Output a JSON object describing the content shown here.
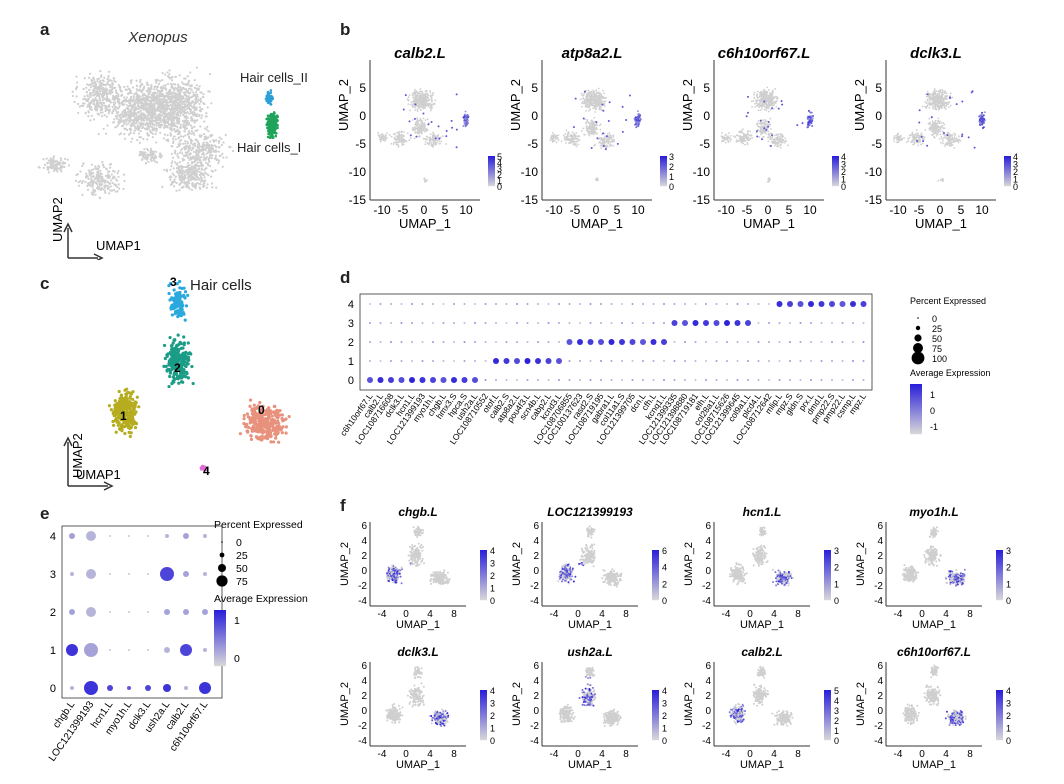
{
  "panels": {
    "a": {
      "letter": "a",
      "title": "Xenopus",
      "label_hair_ii": "Hair cells_II",
      "label_hair_i": "Hair cells_I",
      "axis_x": "UMAP1",
      "axis_y": "UMAP2"
    },
    "b": {
      "letter": "b",
      "axis_x": "UMAP_1",
      "axis_y": "UMAP_2",
      "x_ticks": [
        "-10",
        "-5",
        "0",
        "5",
        "10"
      ],
      "y_ticks": [
        "5",
        "0",
        "-5",
        "-10",
        "-15"
      ],
      "plots": [
        {
          "gene": "calb2.L",
          "cbar": [
            "5",
            "4",
            "3",
            "2",
            "1",
            "0"
          ]
        },
        {
          "gene": "atp8a2.L",
          "cbar": [
            "3",
            "2",
            "1",
            "0"
          ]
        },
        {
          "gene": "c6h10orf67.L",
          "cbar": [
            "4",
            "3",
            "2",
            "1",
            "0"
          ]
        },
        {
          "gene": "dclk3.L",
          "cbar": [
            "4",
            "3",
            "2",
            "1",
            "0"
          ]
        }
      ]
    },
    "c": {
      "letter": "c",
      "title": "Hair cells",
      "axis_x": "UMAP1",
      "axis_y": "UMAP2",
      "clusters": [
        "0",
        "1",
        "2",
        "3",
        "4"
      ]
    },
    "d": {
      "letter": "d",
      "y_labels": [
        "4",
        "3",
        "2",
        "1",
        "0"
      ],
      "genes": [
        "c6h10orf67.L",
        "calb2.L",
        "LOC108716608",
        "dclk3.L",
        "hcn1.L",
        "LOC121399193",
        "myo1h.L",
        "chgb.L",
        "hmx3.S",
        "hpca.S",
        "ush2a.L",
        "LOC108710552",
        "otof.L",
        "calb2.S",
        "atp8a2.L",
        "pou4f3.L",
        "scn4b.L",
        "cabp2.L",
        "kcnd3.L",
        "LOC108706855",
        "LOC100137623",
        "rasd2.S",
        "LOC108719195",
        "gabra1.L",
        "col11a1.S",
        "LOC121399705",
        "dcn.L",
        "cfh.L",
        "kcnq1.L",
        "LOC121399335",
        "LOC121398880",
        "LOC108719181",
        "elh.L",
        "col28a1.L",
        "LOC108715626",
        "LOC121399645",
        "col9a1.L",
        "plcd4.L",
        "LOC108712642",
        "mlip.L",
        "mpz.S",
        "gldn.S",
        "prx.L",
        "dmd.L",
        "pmp22.S",
        "pmp22.L",
        "csmp.L",
        "mpz.L"
      ],
      "legend_pct_title": "Percent Expressed",
      "legend_pct": [
        "0",
        "25",
        "50",
        "75",
        "100"
      ],
      "legend_avg_title": "Average Expression",
      "legend_avg": [
        "1",
        "0",
        "-1"
      ]
    },
    "e": {
      "letter": "e",
      "y_labels": [
        "4",
        "3",
        "2",
        "1",
        "0"
      ],
      "genes": [
        "chgb.L",
        "LOC121399193",
        "hcn1.L",
        "myo1h.L",
        "dclk3.L",
        "ush2a.L",
        "calb2.L",
        "c6h10orf67.L"
      ],
      "legend_pct_title": "Percent Expressed",
      "legend_pct": [
        "0",
        "25",
        "50",
        "75"
      ],
      "legend_avg_title": "Average Expression",
      "legend_avg": [
        "1",
        "0"
      ]
    },
    "f": {
      "letter": "f",
      "axis_x": "UMAP_1",
      "axis_y": "UMAP_2",
      "x_ticks": [
        "-4",
        "0",
        "4",
        "8"
      ],
      "y_ticks": [
        "6",
        "4",
        "2",
        "0",
        "-2",
        "-4"
      ],
      "plots": [
        {
          "gene": "chgb.L",
          "cbar": [
            "4",
            "3",
            "2",
            "1",
            "0"
          ]
        },
        {
          "gene": "LOC121399193",
          "cbar": [
            "6",
            "4",
            "2",
            "0"
          ]
        },
        {
          "gene": "hcn1.L",
          "cbar": [
            "3",
            "2",
            "1",
            "0"
          ]
        },
        {
          "gene": "myo1h.L",
          "cbar": [
            "3",
            "2",
            "1",
            "0"
          ]
        },
        {
          "gene": "dclk3.L",
          "cbar": [
            "4",
            "3",
            "2",
            "1",
            "0"
          ]
        },
        {
          "gene": "ush2a.L",
          "cbar": [
            "4",
            "3",
            "2",
            "1",
            "0"
          ]
        },
        {
          "gene": "calb2.L",
          "cbar": [
            "5",
            "4",
            "3",
            "2",
            "1",
            "0"
          ]
        },
        {
          "gene": "c6h10orf67.L",
          "cbar": [
            "4",
            "3",
            "2",
            "1",
            "0"
          ]
        }
      ]
    }
  },
  "colors": {
    "cluster0": "#e8917d",
    "cluster1": "#b5ad1f",
    "cluster2": "#1a9c86",
    "cluster3": "#2aa9dd",
    "cluster4": "#e16ad6",
    "hair_i": "#20a35a",
    "hair_ii": "#2f9fd8",
    "grey": "#cfcfcf",
    "expr_hi": "#2a20d9",
    "expr_lo": "#d9d9d9"
  }
}
